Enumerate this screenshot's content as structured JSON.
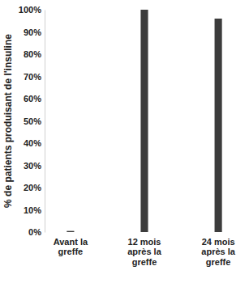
{
  "chart_data": {
    "type": "bar",
    "y_label": "% de patients produisant de l'insuline",
    "categories": [
      "Avant la greffe",
      "12 mois après la greffe",
      "24 mois après la greffe"
    ],
    "values": [
      0.5,
      100,
      96
    ],
    "color": "#3c3c3c",
    "ylim": [
      0,
      100
    ],
    "yticks": [
      {
        "value": 0,
        "label": "0%"
      },
      {
        "value": 10,
        "label": "10%"
      },
      {
        "value": 20,
        "label": "20%"
      },
      {
        "value": 30,
        "label": "30%"
      },
      {
        "value": 40,
        "label": "40%"
      },
      {
        "value": 50,
        "label": "50%"
      },
      {
        "value": 60,
        "label": "60%"
      },
      {
        "value": 70,
        "label": "70%"
      },
      {
        "value": 80,
        "label": "80%"
      },
      {
        "value": 90,
        "label": "90%"
      },
      {
        "value": 100,
        "label": "100%"
      }
    ],
    "grid": false
  }
}
